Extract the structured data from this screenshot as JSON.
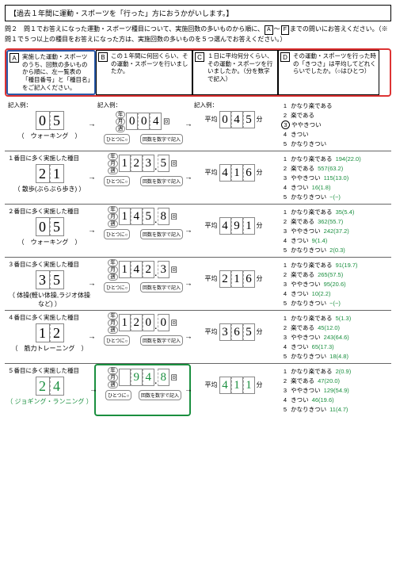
{
  "title": "【過去１年間に運動・スポーツを「行った」方におうかがいします。】",
  "q2": "問２　問１でお答えになった運動・スポーツ種目について、実施回数の多いものから順に、",
  "q2b": "までの問いにお答えください。（※問１で５つ以上の種目をお答えになった方は、実施回数の多いものを５つ選んでお答えください。）",
  "boxA": "A",
  "boxF": "F",
  "hA": "実施した運動・スポーツのうち、回数の多いものから順に、左一覧表の「種目番号」と「種目名」をご記入ください。",
  "hB": "この１年間に何回くらい、その運動・スポーツを行いましたか。",
  "hC": "１日に平均何分くらい、その運動・スポーツを行いましたか。（分を数字で記入）",
  "hD": "その運動・スポーツを行った時の「きつさ」は平均してどれくらいでしたか。（○はひとつ）",
  "lblA": "A",
  "lblB": "B",
  "lblC": "C",
  "lblD": "D",
  "example_label": "記入例：",
  "year": "年",
  "month": "月",
  "week": "週",
  "kai": "回",
  "avg": "平均",
  "fun": "分",
  "bubble1": "ひとつに○",
  "bubble2": "回数を数字で記入",
  "ex": {
    "d1": "0",
    "d2": "5",
    "name": "（　ウォーキング　）",
    "f1": "0",
    "f2": "0",
    "f3": "4",
    "a1": "0",
    "a2": "4",
    "a3": "5"
  },
  "intensity_labels": [
    "かなり楽である",
    "楽である",
    "ややきつい",
    "きつい",
    "かなりきつい"
  ],
  "rows": [
    {
      "title": "１番目に多く実施した種目",
      "d1": "2",
      "d2": "1",
      "name": "（ 散歩(ぶらぶら歩き) ）",
      "f": [
        "1",
        "2",
        "3",
        "5"
      ],
      "fdec": true,
      "a": [
        "4",
        "1",
        "6"
      ],
      "vals": [
        "194(22.0)",
        "557(63.2)",
        "115(13.0)",
        "16(1.8)",
        "−(−)"
      ]
    },
    {
      "title": "２番目に多く実施した種目",
      "d1": "0",
      "d2": "5",
      "name": "（　ウォーキング　）",
      "f": [
        "1",
        "4",
        "5",
        "8"
      ],
      "fdec": true,
      "a": [
        "4",
        "9",
        "1"
      ],
      "vals": [
        "35(5.4)",
        "362(55.7)",
        "242(37.2)",
        "9(1.4)",
        "2(0.3)"
      ]
    },
    {
      "title": "３番目に多く実施した種目",
      "d1": "3",
      "d2": "5",
      "name": "（ 体操(軽い体操,ラジオ体操など) ）",
      "f": [
        "1",
        "4",
        "2",
        "3"
      ],
      "fdec": true,
      "a": [
        "2",
        "1",
        "6"
      ],
      "vals": [
        "91(19.7)",
        "265(57.5)",
        "95(20.6)",
        "10(2.2)",
        "−(−)"
      ]
    },
    {
      "title": "４番目に多く実施した種目",
      "d1": "1",
      "d2": "2",
      "name": "（　筋力トレーニング　）",
      "f": [
        "1",
        "2",
        "0",
        "0"
      ],
      "fdec": true,
      "a": [
        "3",
        "6",
        "5"
      ],
      "vals": [
        "5(1.3)",
        "45(12.0)",
        "243(64.6)",
        "65(17.3)",
        "18(4.8)"
      ]
    },
    {
      "title": "５番目に多く実施した種目",
      "d1": "2",
      "d2": "4",
      "name": "（ ジョギング・ランニング ）",
      "f": [
        "",
        "9",
        "4",
        "8"
      ],
      "fdec": true,
      "a": [
        "4",
        "1",
        "1"
      ],
      "vals": [
        "2(0.9)",
        "47(20.0)",
        "129(54.9)",
        "46(19.6)",
        "11(4.7)"
      ],
      "green": true
    }
  ]
}
